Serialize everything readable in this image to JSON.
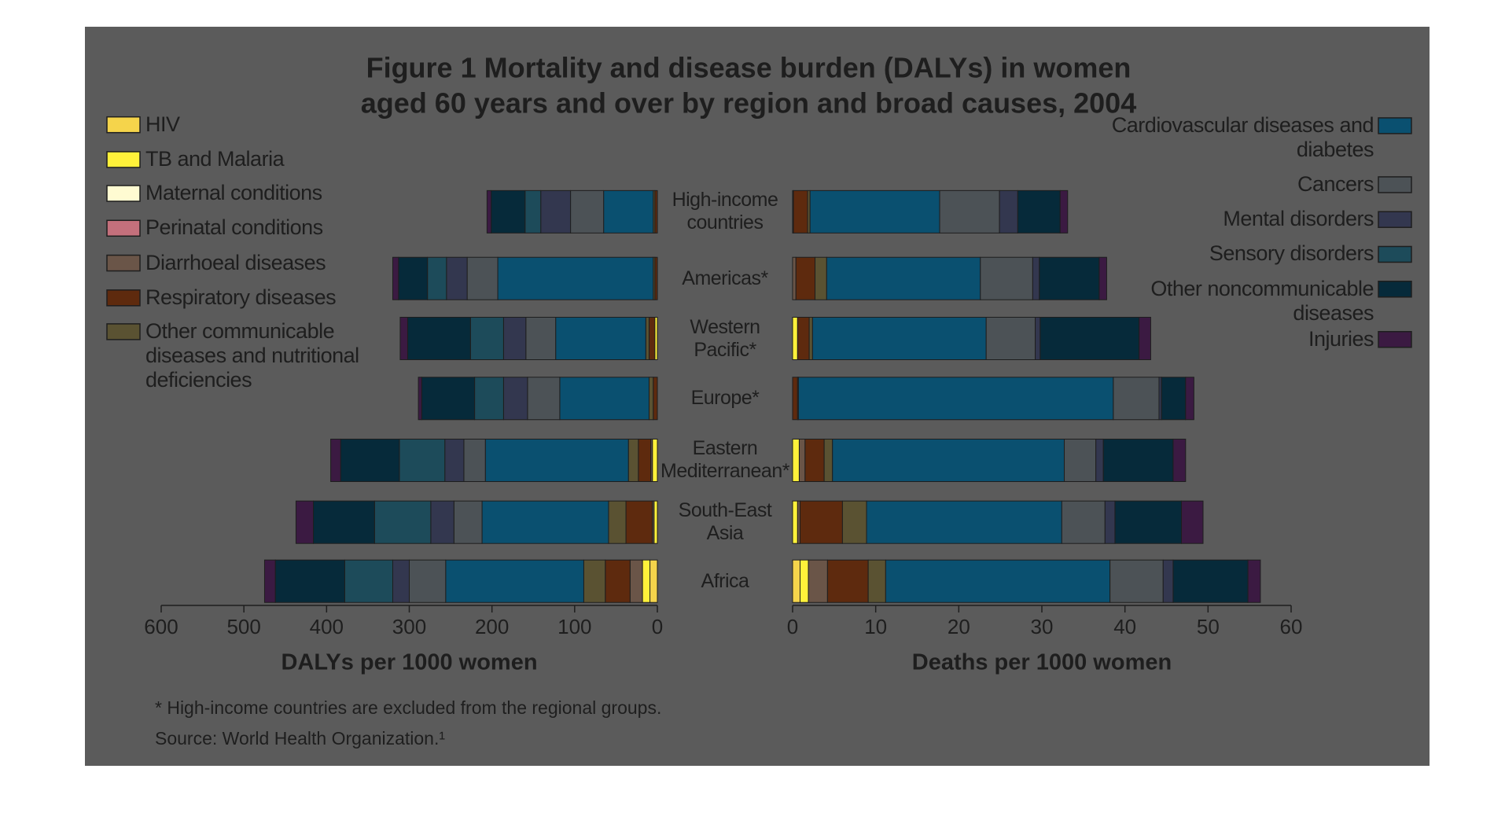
{
  "chart_data": [
    {
      "type": "bar",
      "orientation": "horizontal",
      "x_reversed": true,
      "title": [
        "Figure 1 Mortality and disease burden (DALYs) in women",
        "aged 60 years and over by region and broad causes, 2004"
      ],
      "xlabel": "DALYs per 1000 women",
      "categories": [
        "High-income countries",
        "Americas*",
        "Western Pacific*",
        "Europe*",
        "Eastern Mediterranean*",
        "South-East Asia",
        "Africa"
      ],
      "xlim": [
        0,
        600
      ],
      "xticks": [
        0,
        100,
        200,
        300,
        400,
        500,
        600
      ],
      "series": [
        {
          "name": "HIV",
          "color": "#f5d44b",
          "values": [
            0,
            0,
            0,
            0,
            0,
            0,
            9
          ]
        },
        {
          "name": "TB and Malaria",
          "color": "#fff13a",
          "values": [
            0,
            0,
            3,
            0,
            6,
            4,
            9
          ]
        },
        {
          "name": "Maternal conditions",
          "color": "#fffbd2",
          "values": [
            0,
            0,
            0,
            0,
            0,
            0,
            0
          ]
        },
        {
          "name": "Perinatal conditions",
          "color": "#c4707c",
          "values": [
            0,
            0,
            0,
            0,
            0,
            0,
            0
          ]
        },
        {
          "name": "Diarrhoeal diseases",
          "color": "#6a5548",
          "values": [
            0,
            0,
            0,
            0,
            2,
            2,
            15
          ]
        },
        {
          "name": "Respiratory diseases",
          "color": "#5e2a0e",
          "values": [
            3,
            3,
            7,
            5,
            15,
            32,
            30
          ]
        },
        {
          "name": "Other communicable diseases and nutritional deficiencies",
          "color": "#5a5232",
          "values": [
            2,
            2,
            4,
            5,
            12,
            21,
            26
          ]
        },
        {
          "name": "Cardiovascular diseases and diabetes",
          "color": "#0a5070",
          "values": [
            60,
            188,
            109,
            108,
            173,
            153,
            167
          ]
        },
        {
          "name": "Cancers",
          "color": "#4c5256",
          "values": [
            40,
            37,
            36,
            39,
            26,
            34,
            44
          ]
        },
        {
          "name": "Mental disorders",
          "color": "#33374f",
          "values": [
            36,
            25,
            27,
            29,
            23,
            28,
            20
          ]
        },
        {
          "name": "Sensory disorders",
          "color": "#1d4b5a",
          "values": [
            19,
            23,
            40,
            35,
            55,
            68,
            58
          ]
        },
        {
          "name": "Other noncommunicable diseases",
          "color": "#062a3a",
          "values": [
            41,
            35,
            76,
            64,
            71,
            74,
            84
          ]
        },
        {
          "name": "Injuries",
          "color": "#3b1a42",
          "values": [
            5,
            7,
            9,
            4,
            12,
            21,
            13
          ]
        }
      ],
      "footnote": "* High-income countries are excluded from the regional groups.",
      "source": "Source: World Health Organization.¹"
    },
    {
      "type": "bar",
      "orientation": "horizontal",
      "xlabel": "Deaths per 1000 women",
      "xlim": [
        0,
        60
      ],
      "xticks": [
        0,
        10,
        20,
        30,
        40,
        50,
        60
      ],
      "series": [
        {
          "values": [
            0,
            0,
            0,
            0,
            0,
            0,
            0.9
          ]
        },
        {
          "values": [
            0,
            0,
            0.6,
            0,
            0.8,
            0.6,
            1.0
          ]
        },
        {
          "values": [
            0,
            0,
            0,
            0,
            0,
            0,
            0
          ]
        },
        {
          "values": [
            0,
            0,
            0,
            0,
            0,
            0,
            0
          ]
        },
        {
          "values": [
            0.1,
            0.4,
            0,
            0,
            0.7,
            0.3,
            2.3
          ]
        },
        {
          "values": [
            1.7,
            2.3,
            1.4,
            0.6,
            2.3,
            5.1,
            4.9
          ]
        },
        {
          "values": [
            0.3,
            1.4,
            0.4,
            0.1,
            1.0,
            2.9,
            2.1
          ]
        },
        {
          "values": [
            15.6,
            18.5,
            20.9,
            37.9,
            27.9,
            23.5,
            27.0
          ]
        },
        {
          "values": [
            7.2,
            6.3,
            5.9,
            5.5,
            3.8,
            5.2,
            6.4
          ]
        },
        {
          "values": [
            2.2,
            0.8,
            0.6,
            0.3,
            0.9,
            1.2,
            1.2
          ]
        },
        {
          "values": [
            0,
            0,
            0,
            0,
            0,
            0,
            0
          ]
        },
        {
          "values": [
            5.1,
            7.2,
            11.9,
            2.9,
            8.4,
            8.0,
            9.0
          ]
        },
        {
          "values": [
            0.9,
            0.9,
            1.4,
            1.0,
            1.5,
            2.6,
            1.5
          ]
        }
      ]
    }
  ]
}
